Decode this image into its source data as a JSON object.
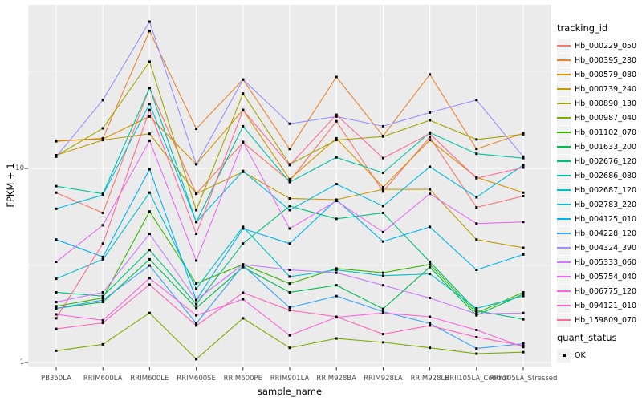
{
  "chart_data": {
    "type": "line",
    "xlabel": "sample_name",
    "ylabel": "FPKM + 1",
    "y_scale": "log10",
    "y_ticks": [
      1,
      10
    ],
    "y_minor_gridlines": [
      3.162,
      31.62
    ],
    "ylim": [
      0.95,
      70
    ],
    "grid": true,
    "panel_bg": "#EBEBEB",
    "grid_color": "#FFFFFF",
    "tick_text_color": "#4D4D4D",
    "point_shape": "square",
    "point_color": "#000000",
    "categories": [
      "PB350LA",
      "RRIM600LA",
      "RRIM600LE",
      "RRIM600SE",
      "RRIM600PE",
      "RRIM901LA",
      "RRIM928BA",
      "RRIM928LA",
      "RRIM928LE",
      "RRII105LA_Control",
      "RRII105LA_Stressed"
    ],
    "legend": {
      "title": "tracking_id",
      "position": "right",
      "key_fill": "#F2F2F2"
    },
    "quant_legend": {
      "title": "quant_status",
      "items": [
        {
          "label": "OK"
        }
      ]
    },
    "series": [
      {
        "name": "Hb_000229_050",
        "color": "#F8766D",
        "values": [
          7.5,
          5.9,
          26,
          7.4,
          13.6,
          8.6,
          17.5,
          7.6,
          14.5,
          6.3,
          7.2
        ]
      },
      {
        "name": "Hb_000395_280",
        "color": "#EA8331",
        "values": [
          13.8,
          14.3,
          51,
          16,
          28.7,
          12.6,
          29.6,
          14.7,
          30.5,
          12.6,
          15.2
        ]
      },
      {
        "name": "Hb_000579_080",
        "color": "#D89000",
        "values": [
          13.9,
          14.2,
          18.5,
          10.5,
          20,
          8.8,
          14.3,
          8,
          14,
          9,
          7.5
        ]
      },
      {
        "name": "Hb_000739_240",
        "color": "#C09B00",
        "values": [
          11.7,
          14,
          15.1,
          7.4,
          9.6,
          7,
          6.9,
          7.8,
          7.8,
          4.3,
          3.9
        ]
      },
      {
        "name": "Hb_000890_130",
        "color": "#A3A500",
        "values": [
          11.6,
          16.1,
          35.5,
          6.1,
          24.3,
          10.5,
          14,
          14.6,
          17.7,
          14.1,
          15
        ]
      },
      {
        "name": "Hb_000987_040",
        "color": "#7CAE00",
        "values": [
          1.15,
          1.24,
          1.8,
          1.04,
          1.69,
          1.19,
          1.33,
          1.27,
          1.19,
          1.11,
          1.13
        ]
      },
      {
        "name": "Hb_001102_070",
        "color": "#39B600",
        "values": [
          1.95,
          2.15,
          6,
          2.55,
          3.2,
          2.55,
          3.05,
          2.9,
          3.2,
          1.8,
          2.3
        ]
      },
      {
        "name": "Hb_001633_200",
        "color": "#00BB4E",
        "values": [
          1.9,
          2.05,
          3.4,
          1.91,
          3.1,
          2.3,
          2.5,
          1.89,
          3.1,
          1.75,
          2.25
        ]
      },
      {
        "name": "Hb_002676_120",
        "color": "#00BF7D",
        "values": [
          2.3,
          2.2,
          3.8,
          2,
          4.1,
          6.4,
          5.5,
          5.9,
          3.3,
          1.85,
          1.67
        ]
      },
      {
        "name": "Hb_002686_080",
        "color": "#00C1A3",
        "values": [
          8.1,
          7.4,
          26,
          5.3,
          16.5,
          8.5,
          11.4,
          9.5,
          15.3,
          11.9,
          11.3
        ]
      },
      {
        "name": "Hb_002687_120",
        "color": "#00BFC4",
        "values": [
          2.7,
          3.4,
          7.5,
          2.4,
          5,
          2.77,
          3,
          2.8,
          2.86,
          1.9,
          2.2
        ]
      },
      {
        "name": "Hb_002783_220",
        "color": "#00BAE0",
        "values": [
          6.2,
          7.3,
          21.5,
          5.3,
          9.7,
          6.1,
          8.3,
          6.4,
          10.2,
          7.1,
          10.4
        ]
      },
      {
        "name": "Hb_004125_010",
        "color": "#00B0F6",
        "values": [
          4.3,
          3.5,
          9.9,
          2.1,
          4.9,
          4.1,
          6.9,
          4.2,
          5,
          3,
          3.6
        ]
      },
      {
        "name": "Hb_004228_120",
        "color": "#35A2FF",
        "values": [
          1.9,
          2.1,
          3.16,
          1.59,
          3.16,
          1.92,
          2.2,
          1.83,
          1.59,
          1.18,
          1.25
        ]
      },
      {
        "name": "Hb_004324_390",
        "color": "#9590FF",
        "values": [
          11.5,
          22.5,
          57,
          10.5,
          28.7,
          17,
          18.5,
          16.5,
          19.4,
          22.5,
          11.5
        ]
      },
      {
        "name": "Hb_005333_060",
        "color": "#C77CFF",
        "values": [
          2.05,
          2.3,
          4.6,
          2.1,
          3.2,
          3,
          2.9,
          2.5,
          2.15,
          1.78,
          1.8
        ]
      },
      {
        "name": "Hb_005754_040",
        "color": "#E76BF3",
        "values": [
          3.3,
          5.1,
          13.9,
          3.35,
          13.7,
          4.9,
          6.8,
          4.7,
          7.4,
          5.2,
          5.3
        ]
      },
      {
        "name": "Hb_006775_120",
        "color": "#FA62DB",
        "values": [
          1.77,
          1.65,
          2.72,
          1.75,
          2.12,
          1.38,
          1.71,
          1.8,
          1.72,
          1.47,
          1.2
        ]
      },
      {
        "name": "Hb_094121_010",
        "color": "#FF62BC",
        "values": [
          1.49,
          1.6,
          2.52,
          1.55,
          2.29,
          1.86,
          1.72,
          1.4,
          1.55,
          1.35,
          1.22
        ]
      },
      {
        "name": "Hb_159809_070",
        "color": "#FF6A98",
        "values": [
          1.69,
          4.1,
          20,
          4.6,
          20,
          10.4,
          18.9,
          11.3,
          15.1,
          8.9,
          10.1
        ]
      }
    ]
  }
}
